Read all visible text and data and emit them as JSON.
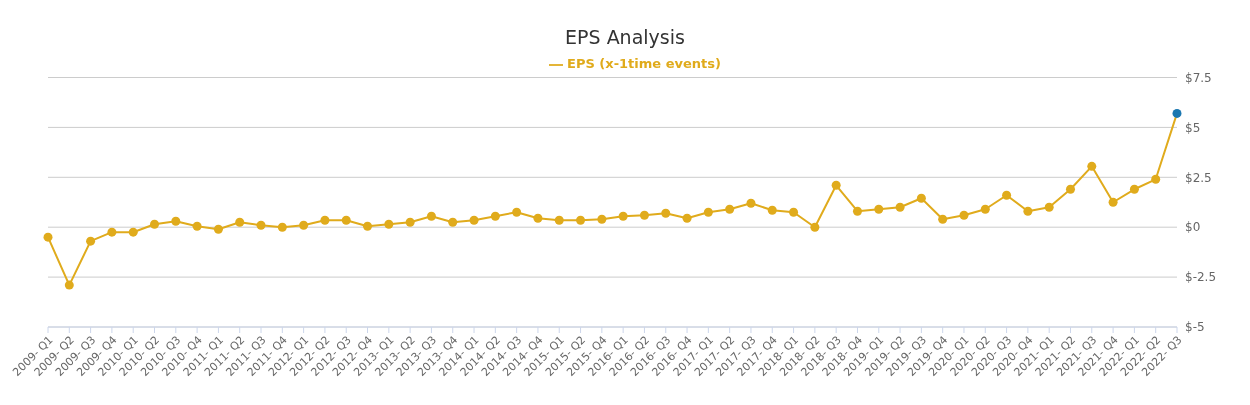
{
  "chart_data": {
    "type": "line",
    "title": "EPS Analysis",
    "categories": [
      "2009- Q1",
      "2009- Q2",
      "2009- Q3",
      "2009- Q4",
      "2010- Q1",
      "2010- Q2",
      "2010- Q3",
      "2010- Q4",
      "2011- Q1",
      "2011- Q2",
      "2011- Q3",
      "2011- Q4",
      "2012- Q1",
      "2012- Q2",
      "2012- Q3",
      "2012- Q4",
      "2013- Q1",
      "2013- Q2",
      "2013- Q3",
      "2013- Q4",
      "2014- Q1",
      "2014- Q2",
      "2014- Q3",
      "2014- Q4",
      "2015- Q1",
      "2015- Q2",
      "2015- Q4",
      "2016- Q1",
      "2016- Q2",
      "2016- Q3",
      "2016- Q4",
      "2017- Q1",
      "2017- Q2",
      "2017- Q3",
      "2017- Q4",
      "2018- Q1",
      "2018- Q2",
      "2018- Q3",
      "2018- Q4",
      "2019- Q1",
      "2019- Q2",
      "2019- Q3",
      "2019- Q4",
      "2020- Q1",
      "2020- Q2",
      "2020- Q3",
      "2020- Q4",
      "2021- Q1",
      "2021- Q2",
      "2021- Q3",
      "2021- Q4",
      "2022- Q1",
      "2022- Q2",
      "2022- Q3"
    ],
    "series": [
      {
        "name": "EPS (x-1time events)",
        "color": "#e0ab1c",
        "values": [
          -0.5,
          -2.9,
          -0.7,
          -0.25,
          -0.25,
          0.15,
          0.3,
          0.05,
          -0.1,
          0.25,
          0.1,
          0,
          0.1,
          0.35,
          0.35,
          0.05,
          0.15,
          0.25,
          0.55,
          0.25,
          0.35,
          0.55,
          0.75,
          0.45,
          0.35,
          0.35,
          0.4,
          0.55,
          0.6,
          0.7,
          0.45,
          0.75,
          0.9,
          1.2,
          0.85,
          0.75,
          0,
          2.1,
          0.8,
          0.9,
          1.0,
          1.45,
          0.4,
          0.6,
          0.9,
          1.6,
          0.8,
          1.0,
          1.9,
          3.05,
          1.25,
          1.9,
          2.4,
          5.7
        ],
        "colors": [
          "#e0ab1c",
          "#e0ab1c",
          "#e0ab1c",
          "#e0ab1c",
          "#e0ab1c",
          "#e0ab1c",
          "#e0ab1c",
          "#e0ab1c",
          "#e0ab1c",
          "#e0ab1c",
          "#e0ab1c",
          "#e0ab1c",
          "#e0ab1c",
          "#e0ab1c",
          "#e0ab1c",
          "#e0ab1c",
          "#e0ab1c",
          "#e0ab1c",
          "#e0ab1c",
          "#e0ab1c",
          "#e0ab1c",
          "#e0ab1c",
          "#e0ab1c",
          "#e0ab1c",
          "#e0ab1c",
          "#e0ab1c",
          "#e0ab1c",
          "#e0ab1c",
          "#e0ab1c",
          "#e0ab1c",
          "#e0ab1c",
          "#e0ab1c",
          "#e0ab1c",
          "#e0ab1c",
          "#e0ab1c",
          "#e0ab1c",
          "#e0ab1c",
          "#e0ab1c",
          "#e0ab1c",
          "#e0ab1c",
          "#e0ab1c",
          "#e0ab1c",
          "#e0ab1c",
          "#e0ab1c",
          "#e0ab1c",
          "#e0ab1c",
          "#e0ab1c",
          "#e0ab1c",
          "#e0ab1c",
          "#e0ab1c",
          "#e0ab1c",
          "#e0ab1c",
          "#e0ab1c",
          "#1a77b0"
        ]
      }
    ],
    "ylim": [
      -5,
      7.5
    ],
    "yticks": [
      {
        "value": -5,
        "label": "$-5"
      },
      {
        "value": -2.5,
        "label": "$-2.5"
      },
      {
        "value": 0,
        "label": "$0"
      },
      {
        "value": 2.5,
        "label": "$2.5"
      },
      {
        "value": 5,
        "label": "$5"
      },
      {
        "value": 7.5,
        "label": "$7.5"
      }
    ],
    "grid": "y",
    "legend": "top",
    "marker": "circle",
    "line_style": "solid"
  }
}
